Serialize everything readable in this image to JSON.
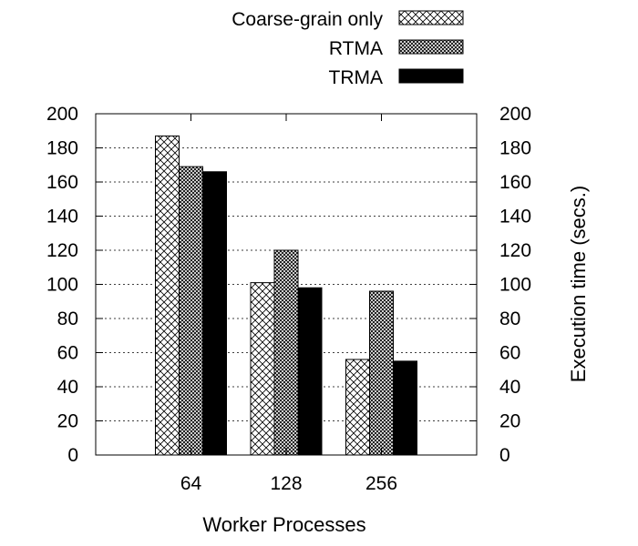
{
  "chart_data": {
    "type": "bar",
    "categories": [
      "64",
      "128",
      "256"
    ],
    "series": [
      {
        "name": "Coarse-grain only",
        "values": [
          187,
          101,
          56
        ],
        "fill": "crosshatch"
      },
      {
        "name": "RTMA",
        "values": [
          169,
          120,
          96
        ],
        "fill": "dense-crosshatch"
      },
      {
        "name": "TRMA",
        "values": [
          166,
          98,
          55
        ],
        "fill": "solid-black"
      }
    ],
    "title": "",
    "xlabel": "Worker Processes",
    "ylabel": "Execution time (secs.)",
    "ylim": [
      0,
      200
    ],
    "yticks": [
      "0",
      "20",
      "40",
      "60",
      "80",
      "100",
      "120",
      "140",
      "160",
      "180",
      "200"
    ],
    "grid": "horizontal dotted",
    "legend_position": "top-right, above plot",
    "colors": {
      "foreground": "#000000",
      "background": "#ffffff"
    }
  }
}
